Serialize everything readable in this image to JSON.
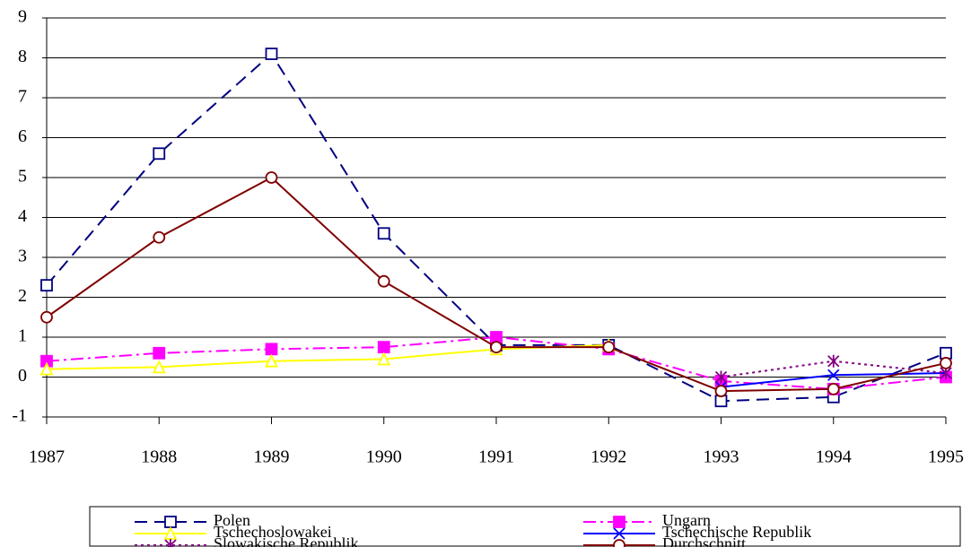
{
  "chart_data": {
    "type": "line",
    "x": [
      1987,
      1988,
      1989,
      1990,
      1991,
      1992,
      1993,
      1994,
      1995
    ],
    "xlim": [
      1987,
      1995
    ],
    "xticks": [
      1987,
      1988,
      1989,
      1990,
      1991,
      1992,
      1993,
      1994,
      1995
    ],
    "ylim": [
      -1,
      9
    ],
    "yticks": [
      -1,
      0,
      1,
      2,
      3,
      4,
      5,
      6,
      7,
      8,
      9
    ],
    "grid": true,
    "legend": "bottom",
    "series": [
      {
        "name": "Polen",
        "color": "#000080",
        "marker": "square",
        "dash": "dashed",
        "values": [
          2.3,
          5.6,
          8.1,
          3.6,
          0.8,
          0.8,
          -0.6,
          -0.5,
          0.6
        ]
      },
      {
        "name": "Ungarn",
        "color": "#ff00ff",
        "marker": "filled-square",
        "dash": "dashdot",
        "values": [
          0.4,
          0.6,
          0.7,
          0.75,
          1.0,
          0.7,
          -0.1,
          -0.3,
          0.0
        ]
      },
      {
        "name": "Tschechoslowakei",
        "color": "#ffff00",
        "marker": "triangle",
        "dash": "solid",
        "values": [
          0.2,
          0.25,
          0.4,
          0.45,
          0.7,
          0.8,
          null,
          null,
          null
        ]
      },
      {
        "name": "Tschechische Republik",
        "color": "#0000ff",
        "marker": "x",
        "dash": "solid",
        "values": [
          null,
          null,
          null,
          null,
          null,
          null,
          -0.25,
          0.05,
          0.1
        ]
      },
      {
        "name": "Slowakische Republik",
        "color": "#800080",
        "marker": "asterisk",
        "dash": "dotted",
        "values": [
          null,
          null,
          null,
          null,
          null,
          null,
          0.0,
          0.4,
          0.1
        ]
      },
      {
        "name": "Durchschnitt",
        "color": "#800000",
        "marker": "circle",
        "dash": "solid",
        "values": [
          1.5,
          3.5,
          5.0,
          2.4,
          0.75,
          0.75,
          -0.35,
          -0.3,
          0.35
        ]
      }
    ]
  }
}
